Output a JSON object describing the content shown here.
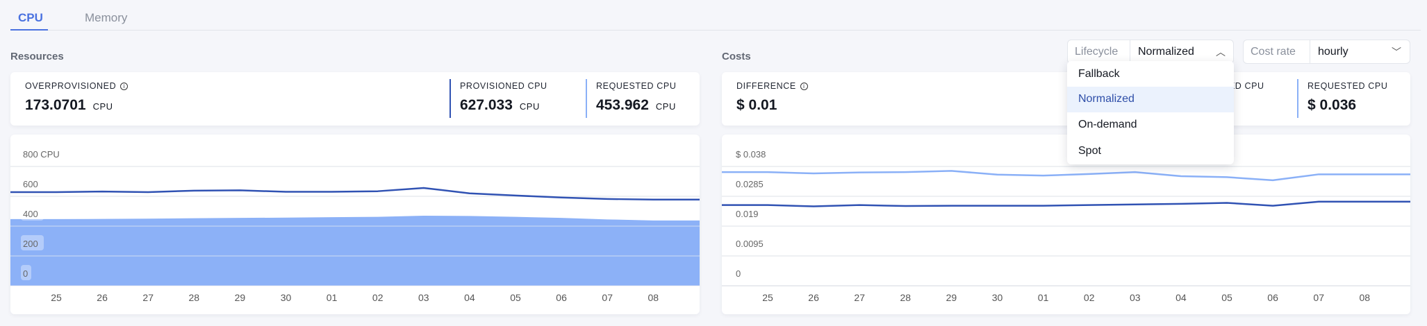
{
  "tabs": [
    {
      "label": "CPU",
      "active": true
    },
    {
      "label": "Memory",
      "active": false
    }
  ],
  "resources": {
    "title": "Resources",
    "stats": [
      {
        "label": "OVERPROVISIONED",
        "value": "173.0701",
        "unit": "CPU",
        "info": true
      },
      {
        "label": "PROVISIONED CPU",
        "value": "627.033",
        "unit": "CPU"
      },
      {
        "label": "REQUESTED CPU",
        "value": "453.962",
        "unit": "CPU"
      }
    ]
  },
  "costs": {
    "title": "Costs",
    "lifecycle": {
      "label": "Lifecycle",
      "value": "Normalized",
      "options": [
        "Fallback",
        "Normalized",
        "On-demand",
        "Spot"
      ],
      "open": true
    },
    "cost_rate": {
      "label": "Cost rate",
      "value": "hourly"
    },
    "stats": [
      {
        "label": "DIFFERENCE",
        "value": "$ 0.01",
        "info": true
      },
      {
        "label": "PROVISIONED CPU",
        "value": ""
      },
      {
        "label": "REQUESTED CPU",
        "value": "$ 0.036"
      }
    ]
  },
  "colors": {
    "accent": "#4a72e0",
    "provisioned": "#3052b3",
    "requested": "#8ab0f7"
  },
  "icons": {
    "info": "info-circle-icon",
    "lifecycle_chevron": "chevron-up-icon",
    "rate_chevron": "chevron-down-icon"
  },
  "chart_data": [
    {
      "type": "area",
      "categories": [
        "25",
        "26",
        "27",
        "28",
        "29",
        "30",
        "01",
        "02",
        "03",
        "04",
        "05",
        "06",
        "07",
        "08"
      ],
      "yticks": [
        "0",
        "200",
        "400",
        "600",
        "800 CPU"
      ],
      "ylim": [
        0,
        800
      ],
      "grid": true,
      "series": [
        {
          "kind": "line",
          "color": "#3052b3",
          "values": [
            628,
            632,
            628,
            638,
            640,
            630,
            630,
            634,
            656,
            620,
            605,
            592,
            582,
            578
          ]
        },
        {
          "kind": "area",
          "color": "#8cb1f7",
          "values": [
            447,
            448,
            450,
            453,
            455,
            457,
            460,
            462,
            470,
            468,
            462,
            455,
            445,
            438
          ]
        }
      ]
    },
    {
      "type": "line",
      "categories": [
        "25",
        "26",
        "27",
        "28",
        "29",
        "30",
        "01",
        "02",
        "03",
        "04",
        "05",
        "06",
        "07",
        "08"
      ],
      "yticks": [
        "0",
        "0.0095",
        "0.019",
        "0.0285",
        "$ 0.038"
      ],
      "ylim": [
        0,
        0.038
      ],
      "grid": true,
      "series": [
        {
          "kind": "line",
          "color": "#8ab0f7",
          "values": [
            0.0362,
            0.0358,
            0.0361,
            0.0362,
            0.0366,
            0.0354,
            0.0351,
            0.0356,
            0.0362,
            0.0349,
            0.0346,
            0.0336,
            0.0355,
            0.0355
          ]
        },
        {
          "kind": "line",
          "color": "#3052b3",
          "values": [
            0.0257,
            0.0253,
            0.0257,
            0.0254,
            0.0255,
            0.0255,
            0.0255,
            0.0257,
            0.0259,
            0.0261,
            0.0264,
            0.0255,
            0.0268,
            0.0268
          ]
        }
      ]
    }
  ]
}
